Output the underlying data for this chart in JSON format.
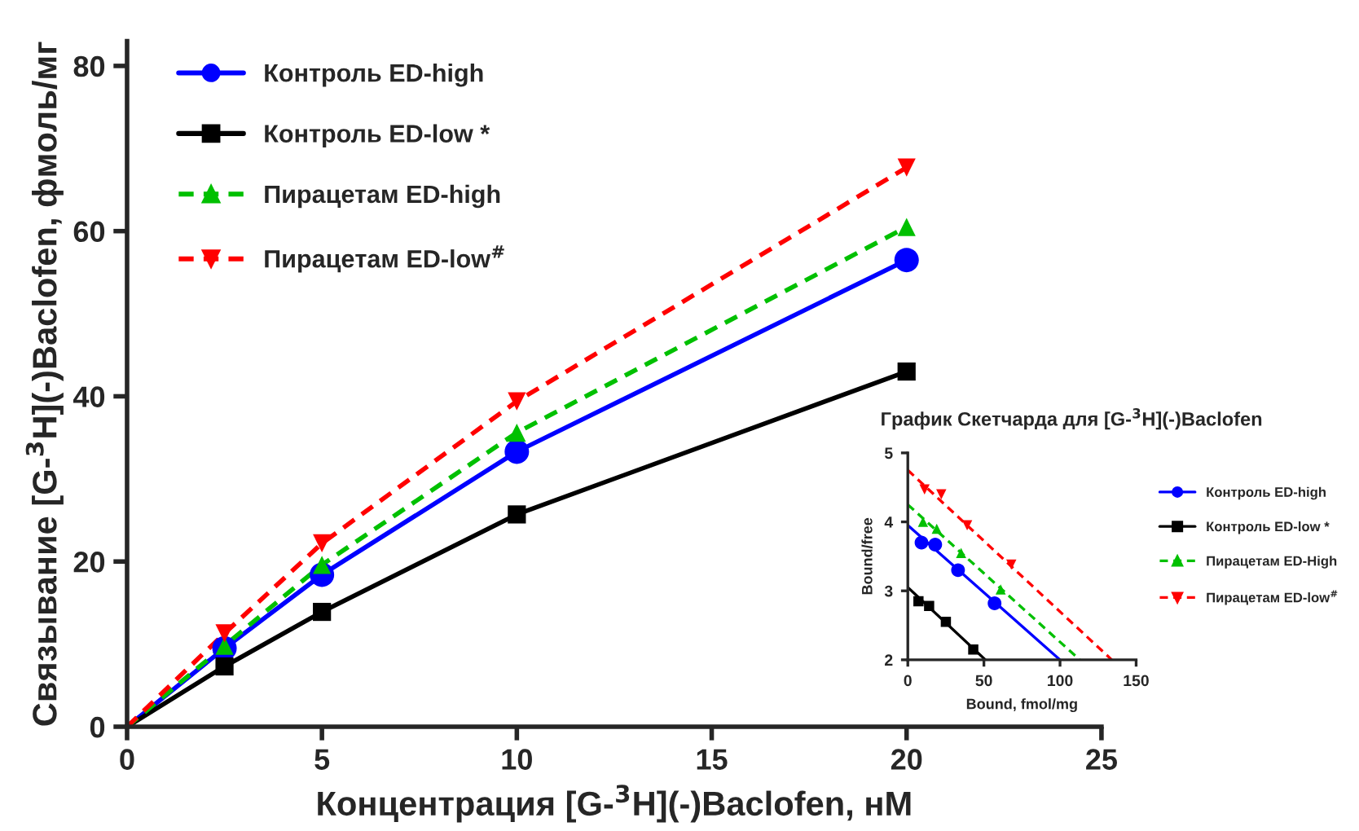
{
  "chart_data": [
    {
      "type": "scatter",
      "xlabel": "Концентрация [G-$^{3}$H](-)Baclofen, нМ",
      "ylabel": "Связывание [G-$^{3}$H](-)Baclofen, фмоль/мг",
      "xlim": [
        0,
        25
      ],
      "xticks": [
        0,
        5,
        10,
        15,
        20,
        25
      ],
      "ylim": [
        0,
        83
      ],
      "yticks": [
        0,
        20,
        40,
        60,
        80
      ],
      "legend": "top left",
      "series": [
        {
          "name": "Контроль ED-high",
          "color": "#0000ff",
          "marker": "circle",
          "line_style": "solid",
          "x": [
            2.5,
            5,
            10,
            20
          ],
          "values": [
            9.5,
            18.4,
            33.3,
            56.5
          ]
        },
        {
          "name": "Контроль ED-low *",
          "color": "#000000",
          "marker": "square",
          "line_style": "solid",
          "x": [
            2.5,
            5,
            10,
            20
          ],
          "values": [
            7.3,
            13.9,
            25.7,
            43
          ]
        },
        {
          "name": "Пирацетам ED-high",
          "color": "#00c000",
          "marker": "triangle",
          "line_style": "dashed",
          "x": [
            2.5,
            5,
            10,
            20
          ],
          "values": [
            9.8,
            19.6,
            35.6,
            60.5
          ]
        },
        {
          "name": "Пирацетам ED-low$^{#}$",
          "color": "#ff0000",
          "marker": "triangle_down",
          "line_style": "dashed",
          "x": [
            2.5,
            5,
            10,
            20
          ],
          "values": [
            11.3,
            22.2,
            39.4,
            67.7
          ]
        },
        {
          "type": "line",
          "color": "#0000ff",
          "marker": "none",
          "line_style": "solid",
          "x": [
            0,
            2.5,
            5,
            10,
            20
          ],
          "values": [
            0,
            9.5,
            18.4,
            33.3,
            56.5
          ]
        },
        {
          "type": "line",
          "color": "#000000",
          "marker": "none",
          "line_style": "solid",
          "x": [
            0,
            2.5,
            5,
            10,
            20
          ],
          "values": [
            0,
            7.3,
            13.9,
            25.7,
            43
          ]
        },
        {
          "type": "line",
          "color": "#00c000",
          "marker": "none",
          "line_style": "dashed",
          "x": [
            0,
            2.5,
            5,
            10,
            20
          ],
          "values": [
            0,
            9.8,
            19.6,
            35.6,
            60.5
          ]
        },
        {
          "type": "line",
          "color": "#ff0000",
          "marker": "none",
          "line_style": "dashed",
          "x": [
            0,
            2.5,
            5,
            10,
            20
          ],
          "values": [
            0,
            11.3,
            22.2,
            39.4,
            67.7
          ]
        }
      ]
    },
    {
      "type": "scatter",
      "title": "График Скетчарда для [G-$^{3}$H](-)Baclofen",
      "xlabel": "Bound, fmol/mg",
      "ylabel": "Bound/free",
      "xlim": [
        0,
        150
      ],
      "xticks": [
        0,
        50,
        100,
        150
      ],
      "ylim": [
        2,
        5
      ],
      "yticks": [
        2,
        3,
        4,
        5
      ],
      "legend": "right",
      "series": [
        {
          "name": "Контроль ED-high",
          "color": "#0000ff",
          "marker": "circle",
          "line_style": "solid",
          "x": [
            9,
            18,
            33,
            57
          ],
          "values": [
            3.7,
            3.67,
            3.3,
            2.82
          ]
        },
        {
          "name": "Контроль ED-low *",
          "color": "#000000",
          "marker": "square",
          "line_style": "solid",
          "x": [
            7,
            14,
            25,
            43
          ],
          "values": [
            2.85,
            2.78,
            2.55,
            2.15
          ]
        },
        {
          "name": "Пирацетам ED-High",
          "color": "#00c000",
          "marker": "triangle",
          "line_style": "dashed",
          "x": [
            10,
            19,
            35,
            61
          ],
          "values": [
            4.0,
            3.9,
            3.55,
            3.02
          ]
        },
        {
          "name": "Пирацетам ED-low$^{#}$",
          "color": "#ff0000",
          "marker": "triangle_down",
          "line_style": "dashed",
          "x": [
            11,
            22,
            39,
            68
          ],
          "values": [
            4.47,
            4.4,
            3.95,
            3.38
          ]
        },
        {
          "type": "line",
          "color": "#0000ff",
          "marker": "none",
          "line_style": "solid",
          "x": [
            0,
            100
          ],
          "values": [
            3.95,
            2.0
          ]
        },
        {
          "type": "line",
          "color": "#000000",
          "marker": "none",
          "line_style": "solid",
          "x": [
            0,
            51
          ],
          "values": [
            3.05,
            2.0
          ]
        },
        {
          "type": "line",
          "color": "#00c000",
          "marker": "none",
          "line_style": "dashed",
          "x": [
            0,
            113
          ],
          "values": [
            4.25,
            2.0
          ]
        },
        {
          "type": "line",
          "color": "#ff0000",
          "marker": "none",
          "line_style": "dashed",
          "x": [
            0,
            134
          ],
          "values": [
            4.75,
            2.0
          ]
        }
      ]
    }
  ]
}
